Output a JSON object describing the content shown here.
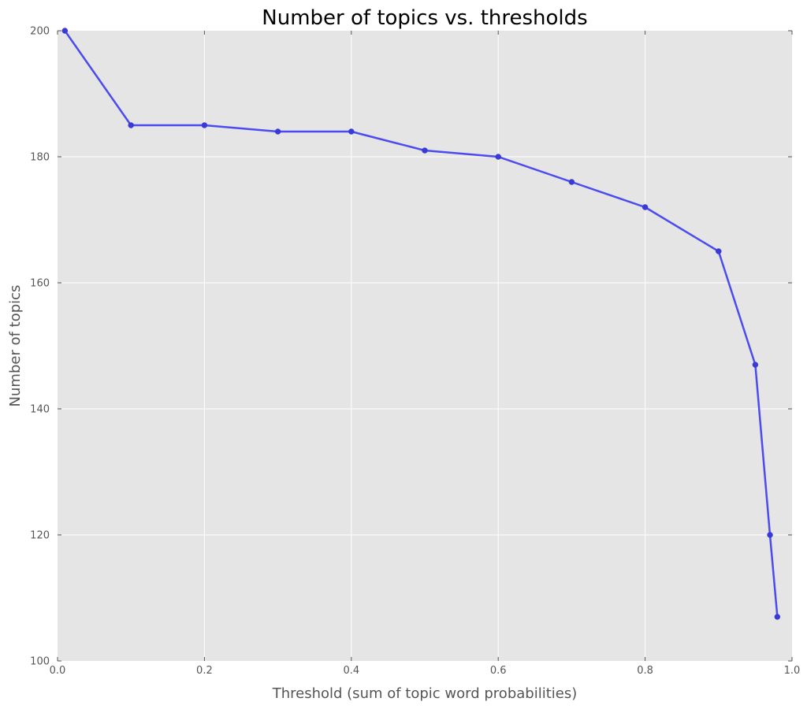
{
  "chart_data": {
    "type": "line",
    "title": "Number of topics vs. thresholds",
    "xlabel": "Threshold (sum of topic word probabilities)",
    "ylabel": "Number of topics",
    "xlim": [
      0.0,
      1.0
    ],
    "ylim": [
      100,
      200
    ],
    "x_ticks": [
      "0.0",
      "0.2",
      "0.4",
      "0.6",
      "0.8",
      "1.0"
    ],
    "y_ticks": [
      "100",
      "120",
      "140",
      "160",
      "180",
      "200"
    ],
    "grid": true,
    "series": [
      {
        "x": [
          0.01,
          0.1,
          0.2,
          0.3,
          0.4,
          0.5,
          0.6,
          0.7,
          0.8,
          0.9,
          0.95,
          0.97,
          0.98
        ],
        "y": [
          200,
          185,
          185,
          184,
          184,
          181,
          180,
          176,
          172,
          165,
          147,
          120,
          107
        ]
      }
    ],
    "colors": {
      "line": "#4b4bf0",
      "marker": "#3a3ad8",
      "plot_background": "#e5e5e5",
      "grid": "#ffffff"
    }
  }
}
